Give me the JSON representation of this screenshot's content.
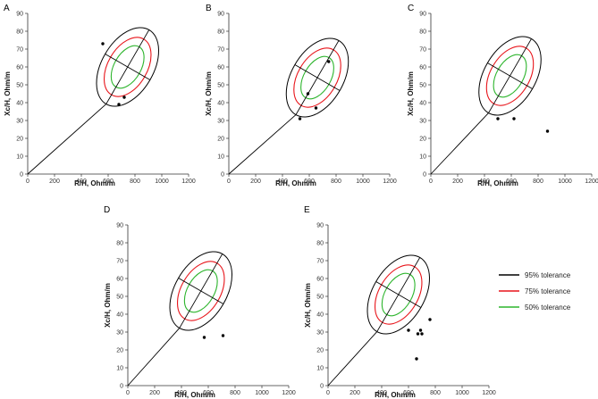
{
  "chart_data": [
    {
      "type": "scatter",
      "panel": "A",
      "title": "A",
      "xlabel": "R/H, Ohm/m",
      "ylabel": "Xc/H, Ohm/m",
      "xlim": [
        0,
        1200
      ],
      "ylim": [
        0,
        90
      ],
      "xticks": [
        "0",
        "200",
        "400",
        "600",
        "800",
        "1000",
        "1200"
      ],
      "yticks": [
        "0",
        "10",
        "20",
        "30",
        "40",
        "50",
        "60",
        "70",
        "80",
        "90"
      ],
      "ellipse_center": [
        745,
        60
      ],
      "points": [
        [
          560,
          73
        ],
        [
          720,
          43
        ],
        [
          680,
          39
        ]
      ]
    },
    {
      "type": "scatter",
      "panel": "B",
      "title": "B",
      "xlabel": "R/H, Ohm/m",
      "ylabel": "Xc/H, Ohm/m",
      "xlim": [
        0,
        1200
      ],
      "ylim": [
        0,
        90
      ],
      "xticks": [
        "0",
        "200",
        "400",
        "600",
        "800",
        "1000",
        "1200"
      ],
      "yticks": [
        "0",
        "10",
        "20",
        "30",
        "40",
        "50",
        "60",
        "70",
        "80",
        "90"
      ],
      "ellipse_center": [
        660,
        54
      ],
      "points": [
        [
          745,
          63
        ],
        [
          590,
          45
        ],
        [
          650,
          37
        ],
        [
          530,
          31
        ]
      ]
    },
    {
      "type": "scatter",
      "panel": "C",
      "title": "C",
      "xlabel": "R/H, Ohm/m",
      "ylabel": "Xc/H, Ohm/m",
      "xlim": [
        0,
        1200
      ],
      "ylim": [
        0,
        90
      ],
      "xticks": [
        "0",
        "200",
        "400",
        "600",
        "800",
        "1000",
        "1200"
      ],
      "yticks": [
        "0",
        "10",
        "20",
        "30",
        "40",
        "50",
        "60",
        "70",
        "80",
        "90"
      ],
      "ellipse_center": [
        590,
        55
      ],
      "points": [
        [
          500,
          31
        ],
        [
          620,
          31
        ],
        [
          870,
          24
        ]
      ]
    },
    {
      "type": "scatter",
      "panel": "D",
      "title": "D",
      "xlabel": "R/H, Ohm/m",
      "ylabel": "Xc/H, Ohm/m",
      "xlim": [
        0,
        1200
      ],
      "ylim": [
        0,
        90
      ],
      "xticks": [
        "0",
        "200",
        "400",
        "600",
        "800",
        "1000",
        "1200"
      ],
      "yticks": [
        "0",
        "10",
        "20",
        "30",
        "40",
        "50",
        "60",
        "70",
        "80",
        "90"
      ],
      "ellipse_center": [
        545,
        53
      ],
      "points": [
        [
          570,
          27
        ],
        [
          710,
          28
        ]
      ]
    },
    {
      "type": "scatter",
      "panel": "E",
      "title": "E",
      "xlabel": "R/H, Ohm/m",
      "ylabel": "Xc/H, Ohm/m",
      "xlim": [
        0,
        1200
      ],
      "ylim": [
        0,
        90
      ],
      "xticks": [
        "0",
        "200",
        "400",
        "600",
        "800",
        "1000",
        "1200"
      ],
      "yticks": [
        "0",
        "10",
        "20",
        "30",
        "40",
        "50",
        "60",
        "70",
        "80",
        "90"
      ],
      "ellipse_center": [
        525,
        51
      ],
      "points": [
        [
          760,
          37
        ],
        [
          600,
          31
        ],
        [
          690,
          31
        ],
        [
          670,
          29
        ],
        [
          700,
          29
        ],
        [
          660,
          15
        ]
      ]
    }
  ],
  "legend": [
    {
      "label": "95% tolerance",
      "color": "#000000"
    },
    {
      "label": "75% tolerance",
      "color": "#e8141a"
    },
    {
      "label": "50% tolerance",
      "color": "#2db52d"
    }
  ]
}
